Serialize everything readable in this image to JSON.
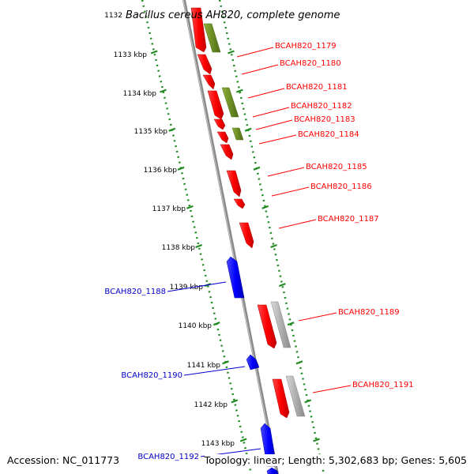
{
  "map": {
    "title_number": "1132",
    "title": "Bacillus cereus AH820, complete genome",
    "ticks": [
      "1133 kbp",
      "1134 kbp",
      "1135 kbp",
      "1136 kbp",
      "1137 kbp",
      "1138 kbp",
      "1139 kbp",
      "1140 kbp",
      "1141 kbp",
      "1142 kbp",
      "1143 kbp"
    ],
    "labels_right": [
      "BCAH820_1179",
      "BCAH820_1180",
      "BCAH820_1181",
      "BCAH820_1182",
      "BCAH820_1183",
      "BCAH820_1184",
      "BCAH820_1185",
      "BCAH820_1186",
      "BCAH820_1187",
      "BCAH820_1189",
      "BCAH820_1191"
    ],
    "labels_left": [
      "BCAH820_1188",
      "BCAH820_1190",
      "BCAH820_1192"
    ],
    "colors": {
      "forward_cds": "#ff0000",
      "reverse_cds": "#0000ff",
      "cog_green": "#6b8e23",
      "cog_gray": "#b0b0b0",
      "ruler": "#228b22",
      "backbone": "#808080"
    }
  },
  "footer": {
    "accession": "Accession: NC_011773",
    "topology": "Topology: linear; Length: 5,302,683 bp; Genes: 5,605"
  }
}
